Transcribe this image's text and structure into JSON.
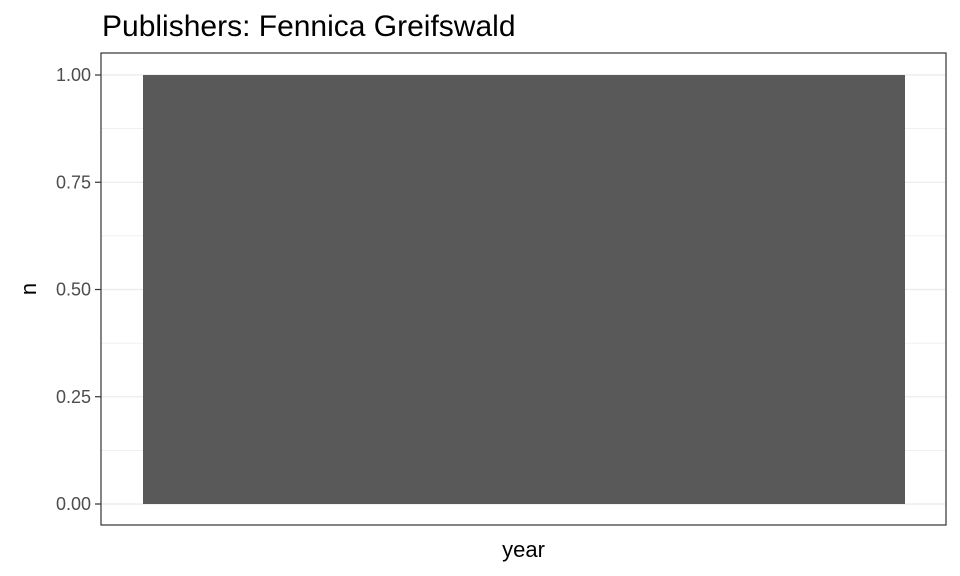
{
  "chart_data": {
    "type": "bar",
    "title": "Publishers: Fennica Greifswald",
    "xlabel": "year",
    "ylabel": "n",
    "categories": [
      ""
    ],
    "values": [
      1
    ],
    "ylim": [
      0,
      1
    ],
    "yticks": [
      "0.00",
      "0.25",
      "0.50",
      "0.75",
      "1.00"
    ],
    "grid": true,
    "bar_color": "#595959",
    "panel_border_color": "#333333",
    "grid_color": "#ebebeb"
  }
}
